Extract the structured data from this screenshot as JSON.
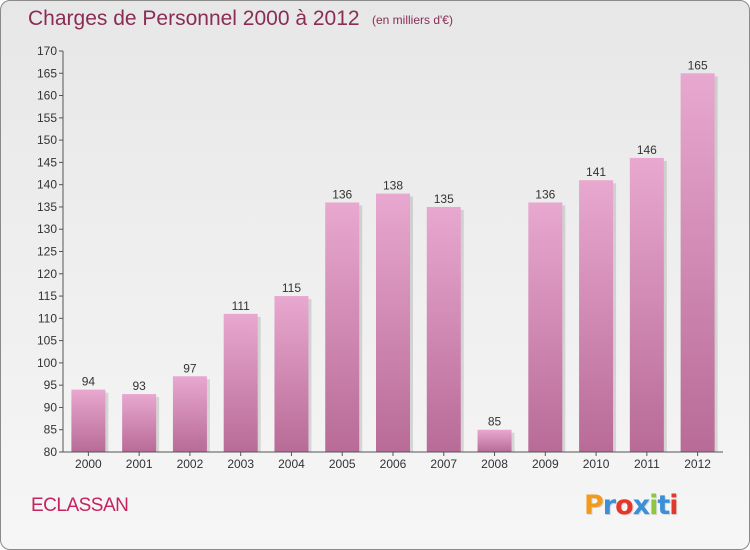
{
  "header": {
    "title": "Charges de Personnel 2000 à 2012",
    "unit_note": "(en milliers d'€)"
  },
  "footer": {
    "commune": "ECLASSAN",
    "brand": {
      "letters": [
        "P",
        "r",
        "o",
        "x",
        "i",
        "t",
        "i"
      ],
      "colors": [
        "#f29a1d",
        "#3a8fd6",
        "#e4372b",
        "#3a8fd6",
        "#8dc63f",
        "#3a8fd6",
        "#e4372b"
      ]
    }
  },
  "colors": {
    "bar_top": "#e8a8cf",
    "bar_bottom": "#b86b97",
    "axis": "#555555",
    "text": "#333333",
    "title": "#8a2d55",
    "commune": "#c5235e"
  },
  "chart_data": {
    "type": "bar",
    "categories": [
      "2000",
      "2001",
      "2002",
      "2003",
      "2004",
      "2005",
      "2006",
      "2007",
      "2008",
      "2009",
      "2010",
      "2011",
      "2012"
    ],
    "values": [
      94,
      93,
      97,
      111,
      115,
      136,
      138,
      135,
      85,
      136,
      141,
      146,
      165
    ],
    "ylim": [
      80,
      170
    ],
    "yticks": [
      80,
      85,
      90,
      95,
      100,
      105,
      110,
      115,
      120,
      125,
      130,
      135,
      140,
      145,
      150,
      155,
      160,
      165,
      170
    ],
    "grid": false,
    "legend": "none"
  }
}
